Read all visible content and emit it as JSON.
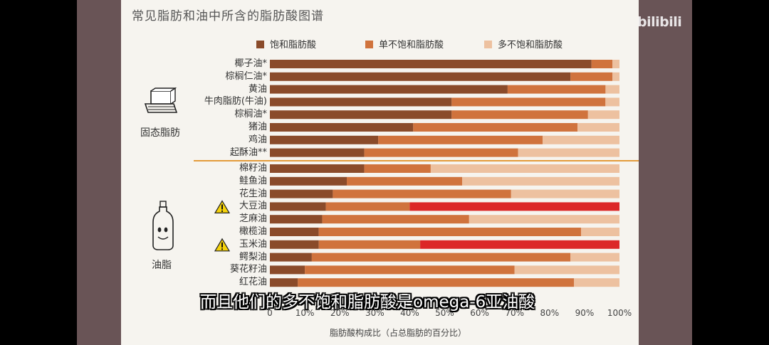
{
  "chart_data": {
    "type": "bar",
    "orientation": "horizontal-stacked-100",
    "title": "常见脂肪和油中所含的脂肪酸图谱",
    "xlabel": "脂肪酸构成比（占总脂肪的百分比）",
    "xlim": [
      0,
      100
    ],
    "xticks": [
      "0",
      "10%",
      "20%",
      "30%",
      "40%",
      "50%",
      "60%",
      "70%",
      "80%",
      "90%",
      "100%"
    ],
    "legend_position": "top",
    "series": [
      {
        "name": "饱和脂肪酸",
        "color": "#8a4b2a"
      },
      {
        "name": "单不饱和脂肪酸",
        "color": "#d0733d"
      },
      {
        "name": "多不饱和脂肪酸",
        "color": "#edc1a0"
      }
    ],
    "groups": [
      {
        "label": "固态脂肪",
        "icon": "butter-icon",
        "items": [
          {
            "name": "椰子油*",
            "values": [
              92,
              6,
              2
            ]
          },
          {
            "name": "棕榈仁油*",
            "values": [
              86,
              12,
              2
            ]
          },
          {
            "name": "黄油",
            "values": [
              68,
              28,
              4
            ]
          },
          {
            "name": "牛肉脂肪(牛油)",
            "values": [
              52,
              44,
              4
            ]
          },
          {
            "name": "棕榈油*",
            "values": [
              52,
              39,
              9
            ]
          },
          {
            "name": "猪油",
            "values": [
              41,
              47,
              12
            ]
          },
          {
            "name": "鸡油",
            "values": [
              31,
              47,
              22
            ]
          },
          {
            "name": "起酥油**",
            "values": [
              27,
              44,
              29
            ]
          }
        ]
      },
      {
        "label": "油脂",
        "icon": "oil-bottle-icon",
        "items": [
          {
            "name": "棉籽油",
            "values": [
              27,
              19,
              54
            ]
          },
          {
            "name": "鲑鱼油",
            "values": [
              22,
              33,
              45
            ]
          },
          {
            "name": "花生油",
            "values": [
              18,
              51,
              31
            ]
          },
          {
            "name": "大豆油",
            "values": [
              16,
              24,
              60
            ],
            "warning": true,
            "highlight_color": "#dc2727"
          },
          {
            "name": "芝麻油",
            "values": [
              15,
              42,
              43
            ]
          },
          {
            "name": "橄榄油",
            "values": [
              14,
              75,
              11
            ]
          },
          {
            "name": "玉米油",
            "values": [
              14,
              29,
              57
            ],
            "warning": true,
            "highlight_color": "#dc2727"
          },
          {
            "name": "鳄梨油",
            "values": [
              12,
              74,
              14
            ]
          },
          {
            "name": "葵花籽油",
            "values": [
              10,
              60,
              30
            ]
          },
          {
            "name": "红花油",
            "values": [
              8,
              79,
              13
            ]
          }
        ]
      }
    ]
  },
  "video": {
    "subtitle": "而且他们的多不饱和脂肪酸是omega-6亚油酸",
    "watermark": "bilibili"
  }
}
